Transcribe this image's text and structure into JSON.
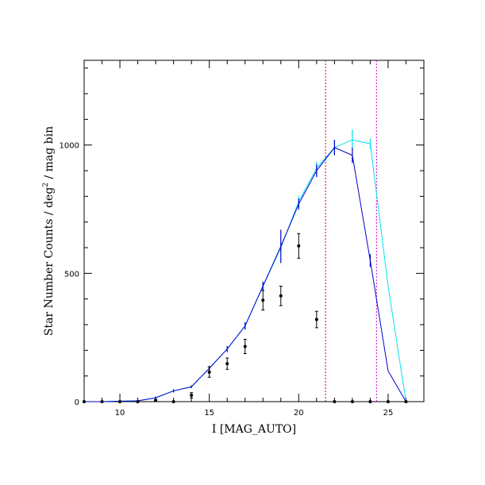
{
  "chart_data": {
    "type": "line",
    "title": "",
    "xlabel": "I [MAG_AUTO]",
    "ylabel_main": "Star Number Counts / deg",
    "ylabel_sup": "2",
    "ylabel_tail": " / mag bin",
    "xlim": [
      8,
      27
    ],
    "ylim": [
      0,
      1330
    ],
    "x_ticks_major": [
      10,
      15,
      20,
      25
    ],
    "x_ticks_minor": [
      8,
      9,
      11,
      12,
      13,
      14,
      16,
      17,
      18,
      19,
      21,
      22,
      23,
      24,
      26
    ],
    "y_ticks_major": [
      0,
      500,
      1000
    ],
    "y_ticks_minor": [
      100,
      200,
      300,
      400,
      600,
      700,
      800,
      900,
      1100,
      1200,
      1300
    ],
    "grid": false,
    "colors": {
      "cyan": "#00e5ee",
      "blue": "#0000cc",
      "points": "#000000",
      "red_line": "#dd0000",
      "magenta_line": "#cc00cc"
    },
    "series": [
      {
        "style": "cyan-line",
        "x": [
          8,
          9,
          10,
          11,
          12,
          13,
          14,
          15,
          16,
          17,
          18,
          19,
          20,
          21,
          22,
          23,
          24,
          25,
          26
        ],
        "y": [
          0,
          0,
          2,
          3,
          15,
          42,
          58,
          130,
          205,
          295,
          450,
          600,
          780,
          910,
          990,
          1020,
          1005,
          450,
          0
        ],
        "err": [
          0,
          0,
          5,
          5,
          5,
          6,
          5,
          10,
          12,
          14,
          18,
          20,
          22,
          25,
          30,
          40,
          20,
          0,
          0
        ]
      },
      {
        "style": "blue-line",
        "x": [
          8,
          9,
          10,
          11,
          12,
          13,
          14,
          15,
          16,
          17,
          18,
          19,
          20,
          21,
          22,
          23,
          24,
          25,
          26
        ],
        "y": [
          0,
          0,
          2,
          3,
          15,
          42,
          58,
          130,
          205,
          295,
          450,
          605,
          770,
          900,
          990,
          960,
          550,
          120,
          0
        ],
        "err": [
          0,
          0,
          5,
          5,
          5,
          6,
          5,
          10,
          12,
          14,
          18,
          65,
          22,
          25,
          30,
          30,
          25,
          0,
          0
        ]
      },
      {
        "style": "points",
        "x": [
          8,
          9,
          10,
          11,
          12,
          13,
          14,
          15,
          16,
          17,
          18,
          19,
          20,
          21,
          22,
          23,
          24,
          25,
          26
        ],
        "y": [
          0,
          0,
          0,
          0,
          5,
          0,
          25,
          115,
          148,
          215,
          395,
          412,
          607,
          320,
          0,
          0,
          0,
          0,
          0
        ],
        "err": [
          0,
          0,
          0,
          0,
          3,
          0,
          10,
          20,
          22,
          28,
          38,
          38,
          48,
          32,
          0,
          0,
          0,
          0,
          0
        ]
      }
    ],
    "vertical_lines": [
      {
        "x": 21.5,
        "style": "red-dashed"
      },
      {
        "x": 24.35,
        "style": "magenta-dashed"
      }
    ]
  }
}
